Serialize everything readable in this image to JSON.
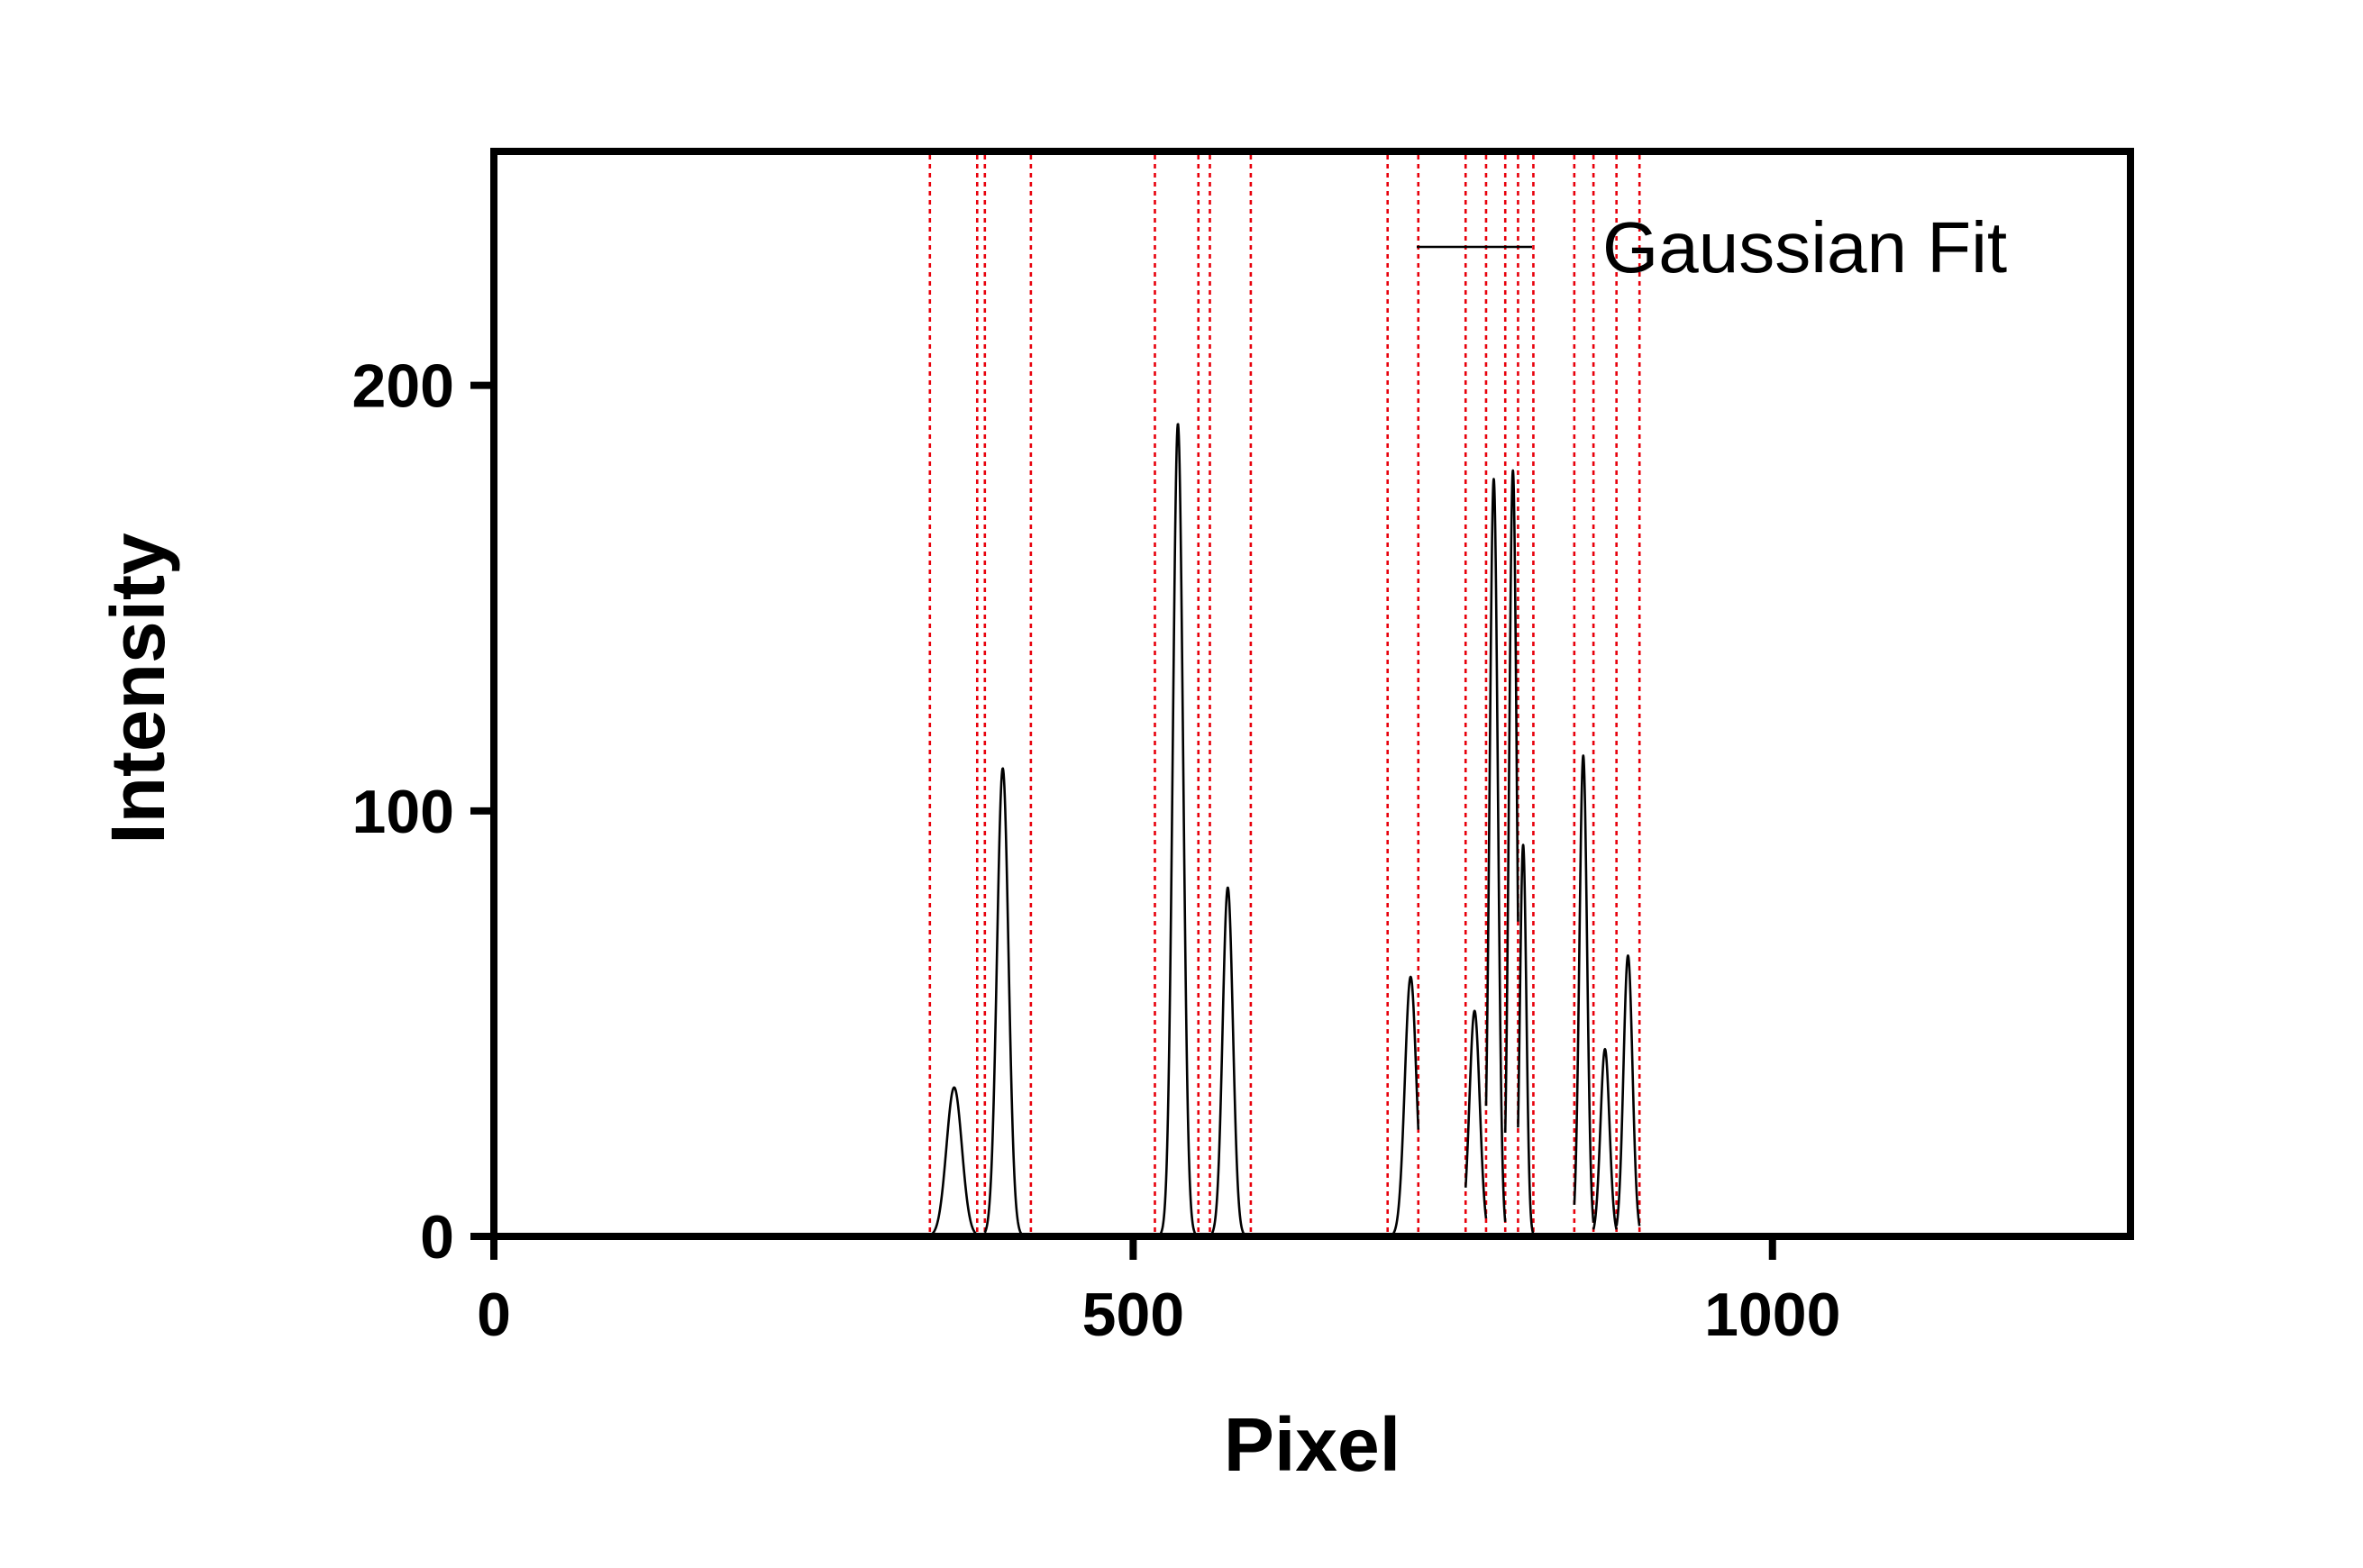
{
  "chart_data": {
    "type": "line",
    "title": "",
    "xlabel": "Pixel",
    "ylabel": "Intensity",
    "xlim": [
      0,
      1280
    ],
    "ylim": [
      0,
      255
    ],
    "xticks": [
      0,
      500,
      1000
    ],
    "xtick_labels": [
      "0",
      "500",
      "1000"
    ],
    "yticks": [
      0,
      100,
      200
    ],
    "ytick_labels": [
      "0",
      "100",
      "200"
    ],
    "grid": false,
    "legend_position": "top-right",
    "colors": {
      "fit_line": "#000000",
      "peak_bounds": "#e8000b",
      "axes": "#000000"
    },
    "series": [
      {
        "name": "Gaussian Fit",
        "type": "gaussian-peaks",
        "peaks": [
          {
            "center": 360,
            "amplitude": 35,
            "sigma": 6,
            "range": [
              341,
              378
            ]
          },
          {
            "center": 398,
            "amplitude": 110,
            "sigma": 4.5,
            "range": [
              384,
              420
            ]
          },
          {
            "center": 535,
            "amplitude": 191,
            "sigma": 4,
            "range": [
              517,
              551
            ]
          },
          {
            "center": 574,
            "amplitude": 82,
            "sigma": 4,
            "range": [
              560,
              592
            ]
          },
          {
            "center": 717,
            "amplitude": 61,
            "sigma": 4.5,
            "range": [
              699,
              723
            ]
          },
          {
            "center": 767,
            "amplitude": 53,
            "sigma": 4,
            "range": [
              760,
              776
            ]
          },
          {
            "center": 782,
            "amplitude": 178,
            "sigma": 3.2,
            "range": [
              776,
              791
            ]
          },
          {
            "center": 797,
            "amplitude": 180,
            "sigma": 3,
            "range": [
              791,
              801
            ]
          },
          {
            "center": 805,
            "amplitude": 92,
            "sigma": 2.5,
            "range": [
              801,
              813
            ]
          },
          {
            "center": 852,
            "amplitude": 113,
            "sigma": 3,
            "range": [
              845,
              860
            ]
          },
          {
            "center": 869,
            "amplitude": 44,
            "sigma": 3.5,
            "range": [
              860,
              878
            ]
          },
          {
            "center": 887,
            "amplitude": 66,
            "sigma": 3.5,
            "range": [
              878,
              896
            ]
          }
        ]
      }
    ],
    "peak_boundaries": [
      341,
      378,
      384,
      420,
      517,
      551,
      560,
      592,
      699,
      723,
      760,
      776,
      791,
      801,
      813,
      845,
      860,
      878,
      896
    ]
  }
}
